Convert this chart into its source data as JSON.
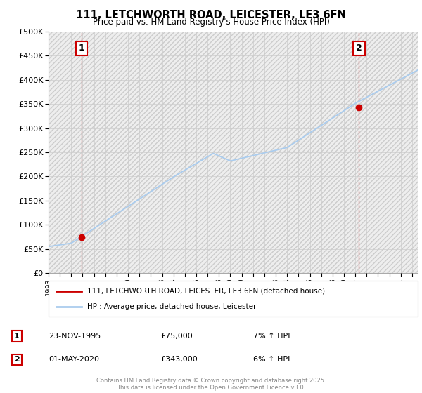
{
  "title": "111, LETCHWORTH ROAD, LEICESTER, LE3 6FN",
  "subtitle": "Price paid vs. HM Land Registry's House Price Index (HPI)",
  "ylabel_ticks": [
    "£0",
    "£50K",
    "£100K",
    "£150K",
    "£200K",
    "£250K",
    "£300K",
    "£350K",
    "£400K",
    "£450K",
    "£500K"
  ],
  "ytick_values": [
    0,
    50000,
    100000,
    150000,
    200000,
    250000,
    300000,
    350000,
    400000,
    450000,
    500000
  ],
  "ylim": [
    0,
    500000
  ],
  "x_start_year": 1993,
  "x_end_year": 2025,
  "marker1_year": 1995.9,
  "marker1_value": 75000,
  "marker2_year": 2020.33,
  "marker2_value": 343000,
  "vline1_year": 1995.9,
  "vline2_year": 2020.33,
  "annotation1_date": "23-NOV-1995",
  "annotation1_price": "£75,000",
  "annotation1_hpi": "7% ↑ HPI",
  "annotation2_date": "01-MAY-2020",
  "annotation2_price": "£343,000",
  "annotation2_hpi": "6% ↑ HPI",
  "line1_color": "#cc0000",
  "line2_color": "#aaccee",
  "marker_color": "#cc0000",
  "vline_color": "#dd6666",
  "grid_color": "#cccccc",
  "legend_label1": "111, LETCHWORTH ROAD, LEICESTER, LE3 6FN (detached house)",
  "legend_label2": "HPI: Average price, detached house, Leicester",
  "footer": "Contains HM Land Registry data © Crown copyright and database right 2025.\nThis data is licensed under the Open Government Licence v3.0."
}
